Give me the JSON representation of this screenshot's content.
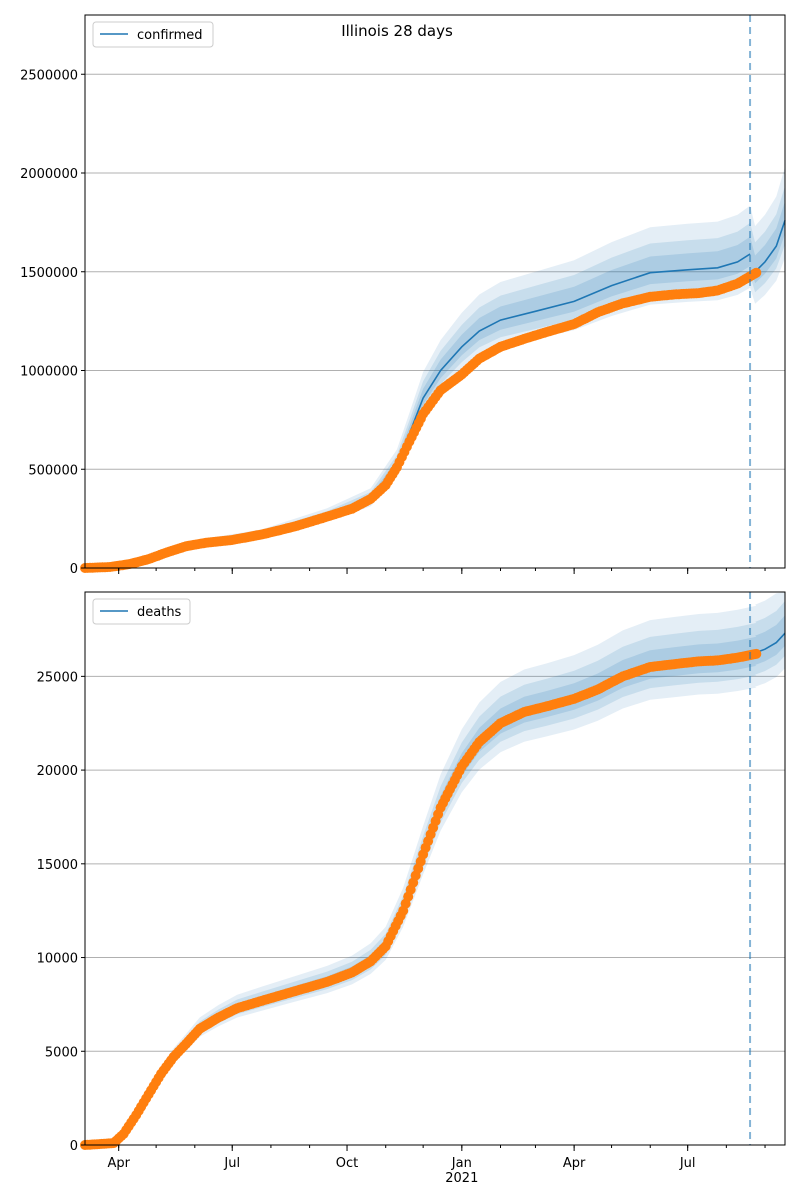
{
  "figure": {
    "title": "Illinois 28 days"
  },
  "chart_data": [
    {
      "type": "line",
      "title": "Illinois 28 days",
      "legend": "confirmed",
      "legend_position": "top-left",
      "grid": "horizontal",
      "ylim": [
        0,
        2800000
      ],
      "xlim": [
        "2020-03-05",
        "2021-09-17"
      ],
      "y_ticks": [
        0,
        500000,
        1000000,
        1500000,
        2000000,
        2500000
      ],
      "y_tick_labels": [
        "0",
        "500000",
        "1000000",
        "1500000",
        "2000000",
        "2500000"
      ],
      "x_tick_labels": [
        {
          "date": "2020-04-01",
          "label": "Apr"
        },
        {
          "date": "2020-07-01",
          "label": "Jul"
        },
        {
          "date": "2020-10-01",
          "label": "Oct"
        },
        {
          "date": "2021-01-01",
          "label": "Jan\n2021"
        },
        {
          "date": "2021-04-01",
          "label": "Apr"
        },
        {
          "date": "2021-07-01",
          "label": "Jul"
        }
      ],
      "forecast_start": "2021-08-20",
      "observed": {
        "color": "#ff7f0e",
        "x": [
          "2020-03-05",
          "2020-03-25",
          "2020-04-10",
          "2020-04-25",
          "2020-05-10",
          "2020-05-25",
          "2020-06-10",
          "2020-07-01",
          "2020-07-25",
          "2020-08-20",
          "2020-09-15",
          "2020-10-05",
          "2020-10-20",
          "2020-11-01",
          "2020-11-10",
          "2020-11-20",
          "2020-12-01",
          "2020-12-15",
          "2021-01-01",
          "2021-01-15",
          "2021-02-01",
          "2021-02-20",
          "2021-03-10",
          "2021-04-01",
          "2021-04-20",
          "2021-05-10",
          "2021-06-01",
          "2021-06-20",
          "2021-07-10",
          "2021-07-25",
          "2021-08-10",
          "2021-08-25"
        ],
        "y": [
          0,
          5000,
          20000,
          45000,
          80000,
          110000,
          128000,
          142000,
          170000,
          210000,
          260000,
          300000,
          350000,
          420000,
          510000,
          640000,
          780000,
          900000,
          980000,
          1060000,
          1120000,
          1160000,
          1195000,
          1235000,
          1295000,
          1340000,
          1373000,
          1385000,
          1392000,
          1405000,
          1440000,
          1495000
        ]
      },
      "fit": {
        "name": "confirmed",
        "color": "#1f77b4",
        "x": [
          "2020-03-05",
          "2020-04-10",
          "2020-05-10",
          "2020-06-10",
          "2020-07-25",
          "2020-09-15",
          "2020-10-20",
          "2020-11-10",
          "2020-11-20",
          "2020-12-01",
          "2020-12-15",
          "2021-01-01",
          "2021-01-15",
          "2021-02-01",
          "2021-03-01",
          "2021-04-01",
          "2021-05-01",
          "2021-06-01",
          "2021-07-01",
          "2021-07-25",
          "2021-08-10",
          "2021-08-20"
        ],
        "y": [
          0,
          18000,
          82000,
          130000,
          170000,
          262000,
          350000,
          520000,
          680000,
          860000,
          1000000,
          1120000,
          1200000,
          1255000,
          1300000,
          1350000,
          1430000,
          1495000,
          1510000,
          1520000,
          1550000,
          1590000
        ]
      },
      "forecast": {
        "x": [
          "2021-08-24",
          "2021-09-01",
          "2021-09-10",
          "2021-09-17"
        ],
        "y": [
          1500000,
          1550000,
          1630000,
          1760000
        ]
      }
    },
    {
      "type": "line",
      "legend": "deaths",
      "legend_position": "top-left",
      "grid": "horizontal",
      "ylim": [
        0,
        29500
      ],
      "xlim": [
        "2020-03-05",
        "2021-09-17"
      ],
      "y_ticks": [
        0,
        5000,
        10000,
        15000,
        20000,
        25000
      ],
      "y_tick_labels": [
        "0",
        "5000",
        "10000",
        "15000",
        "20000",
        "25000"
      ],
      "x_tick_labels": [
        {
          "date": "2020-04-01",
          "label": "Apr"
        },
        {
          "date": "2020-07-01",
          "label": "Jul"
        },
        {
          "date": "2020-10-01",
          "label": "Oct"
        },
        {
          "date": "2021-01-01",
          "label": "Jan\n2021"
        },
        {
          "date": "2021-04-01",
          "label": "Apr"
        },
        {
          "date": "2021-07-01",
          "label": "Jul"
        }
      ],
      "forecast_start": "2021-08-20",
      "observed": {
        "color": "#ff7f0e",
        "x": [
          "2020-03-05",
          "2020-03-28",
          "2020-04-05",
          "2020-04-15",
          "2020-04-25",
          "2020-05-05",
          "2020-05-15",
          "2020-05-25",
          "2020-06-05",
          "2020-06-20",
          "2020-07-05",
          "2020-07-25",
          "2020-08-20",
          "2020-09-15",
          "2020-10-05",
          "2020-10-20",
          "2020-11-01",
          "2020-11-15",
          "2020-12-01",
          "2020-12-15",
          "2021-01-01",
          "2021-01-15",
          "2021-02-01",
          "2021-02-20",
          "2021-03-10",
          "2021-04-01",
          "2021-04-20",
          "2021-05-10",
          "2021-06-01",
          "2021-06-20",
          "2021-07-10",
          "2021-07-25",
          "2021-08-10",
          "2021-08-25"
        ],
        "y": [
          0,
          100,
          600,
          1600,
          2700,
          3800,
          4700,
          5400,
          6200,
          6800,
          7300,
          7700,
          8200,
          8700,
          9200,
          9800,
          10600,
          12500,
          15500,
          18000,
          20200,
          21500,
          22500,
          23100,
          23400,
          23800,
          24300,
          25000,
          25500,
          25650,
          25800,
          25850,
          26000,
          26200
        ]
      },
      "fit": {
        "name": "deaths",
        "color": "#1f77b4",
        "x": [
          "2021-08-24",
          "2021-09-01",
          "2021-09-10",
          "2021-09-17"
        ],
        "y": [
          26250,
          26450,
          26800,
          27300
        ]
      }
    }
  ]
}
